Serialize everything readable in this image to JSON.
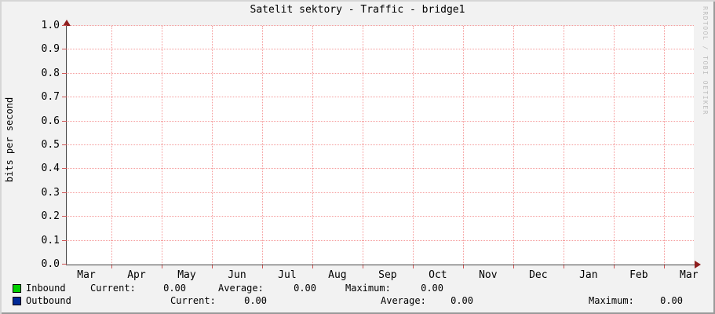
{
  "title": "Satelit sektory - Traffic - bridge1",
  "watermark": "RRDTOOL / TOBI OETIKER",
  "axes": {
    "y_label": "bits per second"
  },
  "chart_data": {
    "type": "area",
    "title": "Satelit sektory - Traffic - bridge1",
    "xlabel": "",
    "ylabel": "bits per second",
    "ylim": [
      0.0,
      1.0
    ],
    "y_ticks": [
      "0.0",
      "0.1",
      "0.2",
      "0.3",
      "0.4",
      "0.5",
      "0.6",
      "0.7",
      "0.8",
      "0.9",
      "1.0"
    ],
    "x_ticks": [
      "Mar",
      "Apr",
      "May",
      "Jun",
      "Jul",
      "Aug",
      "Sep",
      "Oct",
      "Nov",
      "Dec",
      "Jan",
      "Feb",
      "Mar"
    ],
    "grid": true,
    "legend_position": "bottom",
    "series": [
      {
        "name": "Inbound",
        "color": "#00CF00",
        "values": [],
        "stats": {
          "current": "0.00",
          "average": "0.00",
          "maximum": "0.00"
        }
      },
      {
        "name": "Outbound",
        "color": "#002A97",
        "values": [],
        "stats": {
          "current": "0.00",
          "average": "0.00",
          "maximum": "0.00"
        }
      }
    ],
    "note": "graph canvas is empty - no data points plotted"
  },
  "legend": {
    "labels": {
      "current": "Current:",
      "average": "Average:",
      "maximum": "Maximum:"
    }
  },
  "colors": {
    "background": "#f2f2f2",
    "canvas": "#ffffff",
    "grid": "#f59c9c",
    "axis": "#444444",
    "arrow": "#8f1f1f",
    "border_light": "#d6d6d6",
    "border_dark": "#9a9a9a",
    "inbound": "#00CF00",
    "outbound": "#002A97"
  }
}
